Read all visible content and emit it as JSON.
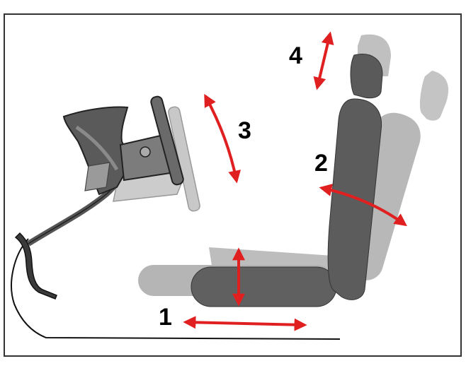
{
  "labels": {
    "fore_aft": "1",
    "cushion_tilt": "2",
    "wheel_tilt": "3",
    "headrest_height": "4"
  },
  "colors": {
    "arrow": "#e02020",
    "seat_dark": "#5e5e5e",
    "seat_light": "#b0b0b0",
    "outline": "#222222",
    "border": "#333333"
  },
  "icons": {
    "pedal": "accelerator-pedal-icon",
    "steering": "steering-wheel-icon",
    "seat": "car-seat-icon"
  }
}
